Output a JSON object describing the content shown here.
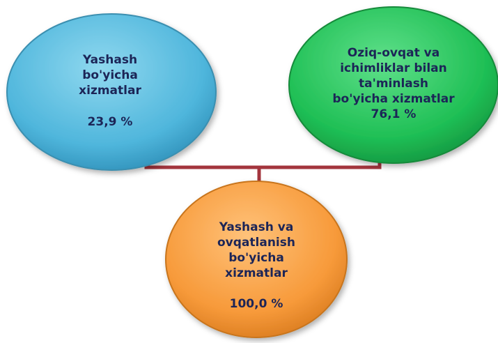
{
  "nodes": [
    {
      "label": [
        "Yashash",
        "bo'yicha",
        "xizmatlar"
      ],
      "value": "23,9 %"
    },
    {
      "label": [
        "Oziq-ovqat va",
        "ichimliklar bilan",
        "ta'minlash",
        "bo'yicha xizmatlar"
      ],
      "value": "76,1 %"
    },
    {
      "label": [
        "Yashash va",
        "ovqatlanish",
        "bo'yicha",
        "xizmatlar"
      ],
      "value": "100,0 %"
    }
  ]
}
